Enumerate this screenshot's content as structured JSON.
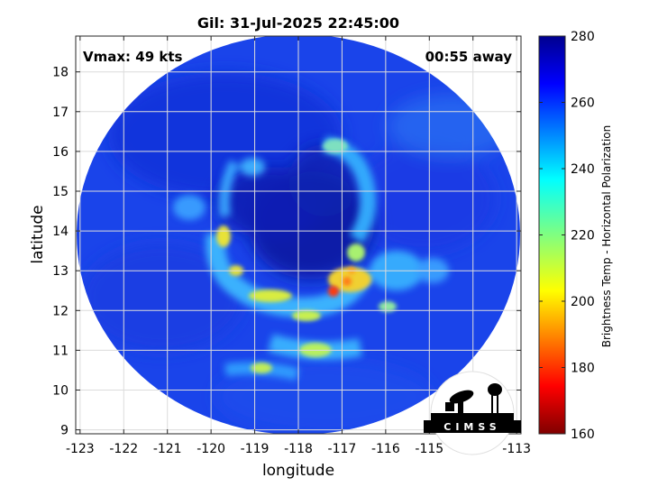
{
  "figure": {
    "title": "Gil: 31-Jul-2025 22:45:00",
    "xlabel": "longitude",
    "ylabel": "latitude",
    "vmax_text": "Vmax: 49 kts",
    "away_text": "00:55 away",
    "x_ticks": [
      "-123",
      "-122",
      "-121",
      "-120",
      "-119",
      "-118",
      "-117",
      "-116",
      "-115",
      "-114",
      "-113"
    ],
    "y_ticks": [
      "9",
      "10",
      "11",
      "12",
      "13",
      "14",
      "15",
      "16",
      "17",
      "18"
    ],
    "xlim": [
      -123.1,
      -112.9
    ],
    "ylim": [
      8.9,
      18.9
    ],
    "colorbar": {
      "label": "Brightness Temp - Horizontal Polarization",
      "ticks": [
        "160",
        "180",
        "200",
        "220",
        "240",
        "260",
        "280"
      ],
      "range": [
        160,
        280
      ],
      "colormap": "jet"
    },
    "logo_text": "CIMSS",
    "colors": {
      "background_field": "#1a40e8",
      "dark_core": "#06149a",
      "cyan_band": "#3ec8ff",
      "yellow_band": "#e8e630",
      "hot_spot": "#ff4010"
    }
  }
}
